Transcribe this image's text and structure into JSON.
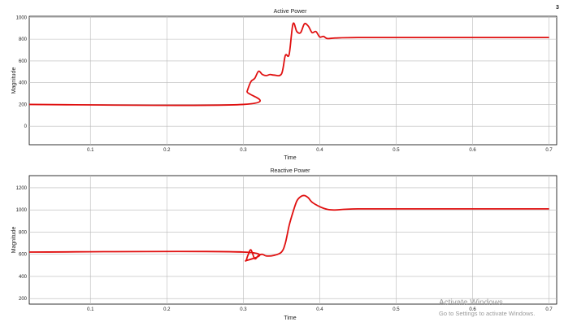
{
  "corner_mark": "3",
  "watermark": {
    "line1": "Activate Windows",
    "line2": "Go to Settings to activate Windows."
  },
  "chart_data": [
    {
      "type": "line",
      "title": "Active Power",
      "xlabel": "Time",
      "ylabel": "Magnitude",
      "xlim": [
        0.02,
        0.71
      ],
      "ylim": [
        -170,
        1010
      ],
      "xticks": [
        0.1,
        0.2,
        0.3,
        0.4,
        0.5,
        0.6,
        0.7
      ],
      "xtick_labels": [
        "0.1",
        "0.2",
        "0.3",
        "0.4",
        "0.5",
        "0.6",
        "0.7"
      ],
      "yticks": [
        0,
        200,
        400,
        600,
        800,
        1000
      ],
      "ytick_labels": [
        "0",
        "200",
        "400",
        "600",
        "800",
        "1000"
      ],
      "grid": true,
      "series": [
        {
          "color": "#e01010",
          "x": [
            0.02,
            0.3,
            0.305,
            0.31,
            0.315,
            0.32,
            0.325,
            0.33,
            0.335,
            0.34,
            0.35,
            0.355,
            0.36,
            0.365,
            0.37,
            0.375,
            0.38,
            0.385,
            0.39,
            0.395,
            0.4,
            0.405,
            0.41,
            0.42,
            0.45,
            0.55,
            0.7
          ],
          "y": [
            200,
            200,
            320,
            410,
            440,
            505,
            475,
            465,
            475,
            470,
            480,
            650,
            660,
            940,
            870,
            860,
            940,
            920,
            860,
            870,
            820,
            825,
            805,
            810,
            815,
            815,
            815
          ]
        }
      ]
    },
    {
      "type": "line",
      "title": "Reactive Power",
      "xlabel": "Time",
      "ylabel": "Magnitude",
      "xlim": [
        0.02,
        0.71
      ],
      "ylim": [
        150,
        1310
      ],
      "xticks": [
        0.1,
        0.2,
        0.3,
        0.4,
        0.5,
        0.6,
        0.7
      ],
      "xtick_labels": [
        "0.1",
        "0.2",
        "0.3",
        "0.4",
        "0.5",
        "0.6",
        "0.7"
      ],
      "yticks": [
        200,
        400,
        600,
        800,
        1000,
        1200
      ],
      "ytick_labels": [
        "200",
        "400",
        "600",
        "800",
        "1000",
        "1200"
      ],
      "grid": true,
      "series": [
        {
          "color": "#e01010",
          "x": [
            0.02,
            0.3,
            0.303,
            0.306,
            0.31,
            0.315,
            0.32,
            0.325,
            0.33,
            0.34,
            0.35,
            0.355,
            0.36,
            0.365,
            0.37,
            0.375,
            0.38,
            0.385,
            0.39,
            0.4,
            0.41,
            0.42,
            0.45,
            0.55,
            0.7
          ],
          "y": [
            620,
            620,
            540,
            590,
            640,
            560,
            590,
            600,
            585,
            590,
            620,
            700,
            860,
            980,
            1080,
            1120,
            1130,
            1110,
            1070,
            1030,
            1005,
            1000,
            1010,
            1010,
            1010
          ]
        }
      ]
    }
  ]
}
